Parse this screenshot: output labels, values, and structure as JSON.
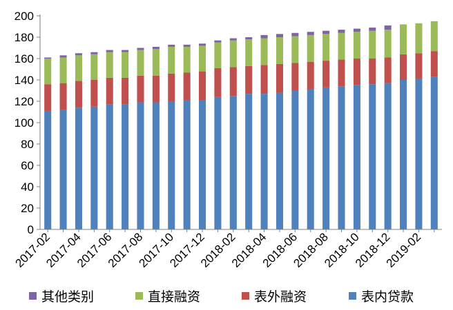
{
  "chart_data": {
    "type": "bar",
    "stacked": true,
    "categories": [
      "2017-02",
      "2017-03",
      "2017-04",
      "2017-05",
      "2017-06",
      "2017-07",
      "2017-08",
      "2017-09",
      "2017-10",
      "2017-11",
      "2017-12",
      "2018-01",
      "2018-02",
      "2018-03",
      "2018-04",
      "2018-05",
      "2018-06",
      "2018-07",
      "2018-08",
      "2018-09",
      "2018-10",
      "2018-11",
      "2018-12",
      "2019-01",
      "2019-02",
      "2019-03"
    ],
    "x_tick_labels": [
      "2017-02",
      "2017-04",
      "2017-06",
      "2017-08",
      "2017-10",
      "2017-12",
      "2018-02",
      "2018-04",
      "2018-06",
      "2018-08",
      "2018-10",
      "2018-12",
      "2019-02"
    ],
    "series": [
      {
        "name": "表内贷款",
        "color": "#4F81BD",
        "values": [
          111,
          112,
          114,
          115,
          117,
          117,
          119,
          119,
          120,
          121,
          121,
          124,
          125,
          127,
          127,
          128,
          130,
          131,
          133,
          134,
          135,
          136,
          137,
          140,
          141,
          143
        ]
      },
      {
        "name": "表外融资",
        "color": "#C0504D",
        "values": [
          25,
          25,
          25,
          25,
          25,
          25,
          25,
          25,
          26,
          26,
          27,
          27,
          27,
          26,
          27,
          27,
          26,
          26,
          25,
          25,
          25,
          24,
          24,
          24,
          24,
          24
        ]
      },
      {
        "name": "直接融资",
        "color": "#9BBB59",
        "values": [
          24,
          24,
          24,
          24,
          24,
          24,
          24,
          25,
          25,
          24,
          24,
          24,
          25,
          25,
          25,
          25,
          25,
          25,
          25,
          25,
          25,
          26,
          26,
          28,
          28,
          28
        ]
      },
      {
        "name": "其他类别",
        "color": "#8064A2",
        "values": [
          1,
          2,
          2,
          2,
          2,
          2,
          2,
          2,
          2,
          2,
          2,
          2,
          2,
          2,
          3,
          3,
          3,
          3,
          3,
          3,
          3,
          3,
          4,
          0,
          0,
          0
        ]
      }
    ],
    "ylim": [
      0,
      200
    ],
    "yticks": [
      0,
      20,
      40,
      60,
      80,
      100,
      120,
      140,
      160,
      180,
      200
    ],
    "grid": false,
    "legend_position": "bottom",
    "legend_order": [
      "其他类别",
      "直接融资",
      "表外融资",
      "表内贷款"
    ],
    "title": "",
    "xlabel": "",
    "ylabel": ""
  }
}
